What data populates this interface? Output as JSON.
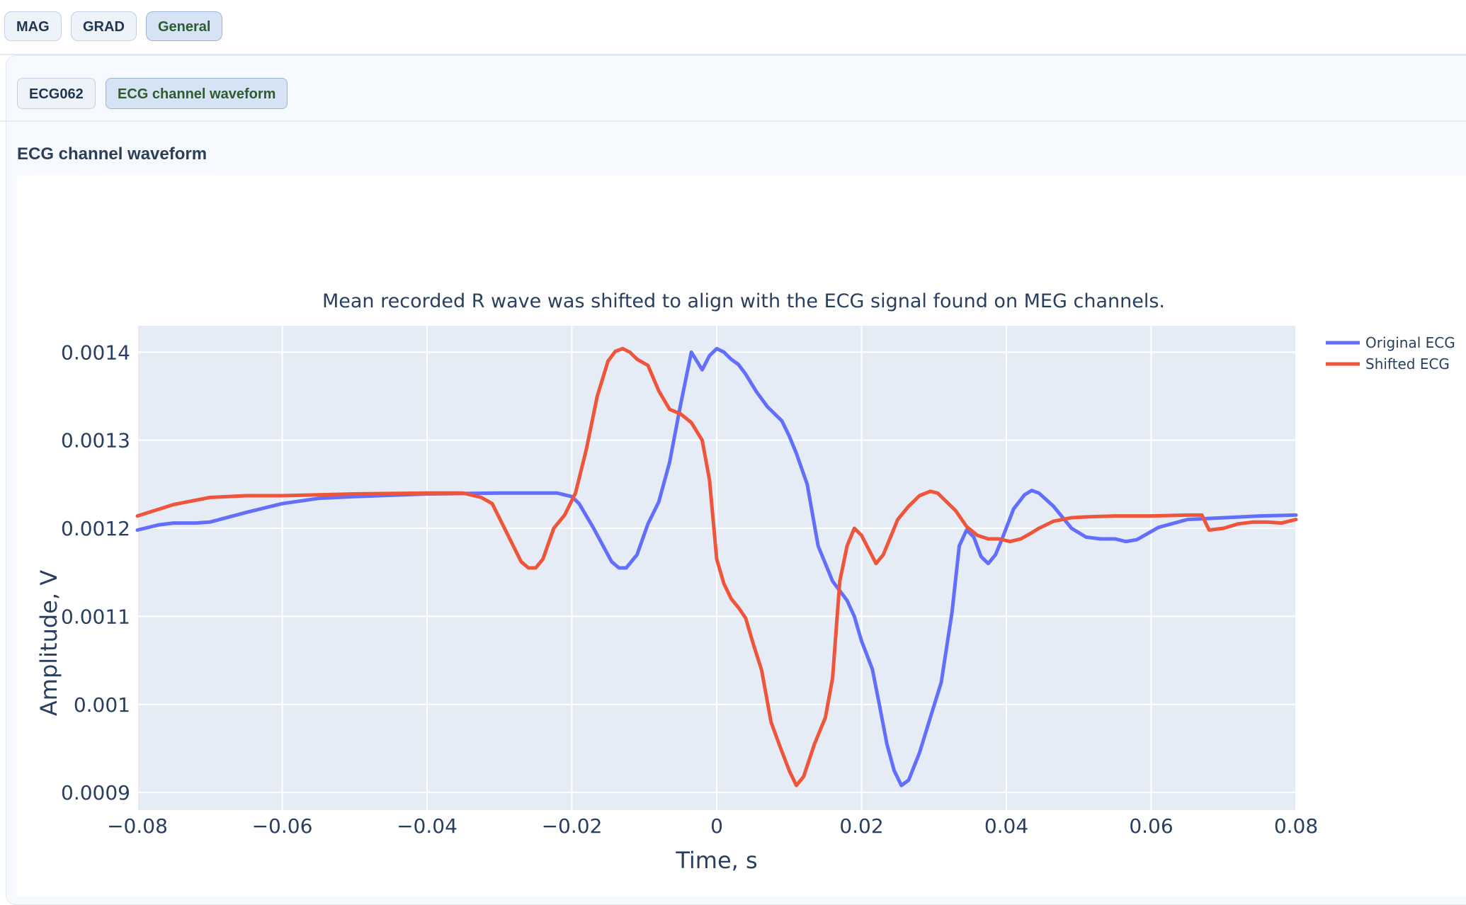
{
  "top_tabs": [
    {
      "label": "MAG"
    },
    {
      "label": "GRAD"
    },
    {
      "label": "General",
      "active": true
    }
  ],
  "sub_tabs": [
    {
      "label": "ECG062"
    },
    {
      "label": "ECG channel waveform",
      "active": true
    }
  ],
  "section_title": "ECG channel waveform",
  "colors": {
    "original": "#636efa",
    "shifted": "#ef553b",
    "plot_bg": "#e5ecf6",
    "grid": "#ffffff"
  },
  "chart_data": {
    "type": "line",
    "title": "Mean recorded R wave was shifted to align with the ECG signal found on MEG channels.",
    "xlabel": "Time, s",
    "ylabel": "Amplitude, V",
    "xlim": [
      -0.08,
      0.08
    ],
    "ylim": [
      0.00088,
      0.00143
    ],
    "x_ticks": [
      -0.08,
      -0.06,
      -0.04,
      -0.02,
      0,
      0.02,
      0.04,
      0.06,
      0.08
    ],
    "x_tick_labels": [
      "−0.08",
      "−0.06",
      "−0.04",
      "−0.02",
      "0",
      "0.02",
      "0.04",
      "0.06",
      "0.08"
    ],
    "y_ticks": [
      0.0009,
      0.001,
      0.0011,
      0.0012,
      0.0013,
      0.0014
    ],
    "y_tick_labels": [
      "0.0009",
      "0.001",
      "0.0011",
      "0.0012",
      "0.0013",
      "0.0014"
    ],
    "grid": true,
    "legend_position": "top-right",
    "series": [
      {
        "name": "Original ECG",
        "color": "#636efa",
        "x": [
          -0.08,
          -0.077,
          -0.075,
          -0.072,
          -0.07,
          -0.065,
          -0.06,
          -0.055,
          -0.05,
          -0.04,
          -0.03,
          -0.022,
          -0.02,
          -0.019,
          -0.017,
          -0.0145,
          -0.0135,
          -0.0125,
          -0.011,
          -0.0095,
          -0.008,
          -0.0065,
          -0.005,
          -0.0035,
          -0.002,
          -0.001,
          0,
          0.001,
          0.002,
          0.003,
          0.004,
          0.0055,
          0.007,
          0.008,
          0.009,
          0.01,
          0.011,
          0.0125,
          0.014,
          0.016,
          0.018,
          0.019,
          0.02,
          0.0215,
          0.0225,
          0.0235,
          0.0245,
          0.0255,
          0.0265,
          0.028,
          0.0295,
          0.031,
          0.0325,
          0.0335,
          0.0345,
          0.0355,
          0.0365,
          0.0375,
          0.0385,
          0.0395,
          0.041,
          0.0425,
          0.0435,
          0.0445,
          0.0465,
          0.049,
          0.051,
          0.053,
          0.055,
          0.0565,
          0.058,
          0.061,
          0.065,
          0.07,
          0.075,
          0.08
        ],
        "y": [
          0.001198,
          0.001204,
          0.001206,
          0.001206,
          0.001207,
          0.001218,
          0.001228,
          0.001234,
          0.001236,
          0.001239,
          0.00124,
          0.00124,
          0.001236,
          0.001228,
          0.0012,
          0.001162,
          0.001155,
          0.001155,
          0.00117,
          0.001205,
          0.00123,
          0.001275,
          0.00134,
          0.0014,
          0.00138,
          0.001396,
          0.001404,
          0.0014,
          0.001392,
          0.001386,
          0.001375,
          0.001355,
          0.001338,
          0.00133,
          0.001322,
          0.001305,
          0.001285,
          0.00125,
          0.00118,
          0.00114,
          0.001118,
          0.0011,
          0.001072,
          0.00104,
          0.000998,
          0.000955,
          0.000925,
          0.000908,
          0.000914,
          0.000945,
          0.000985,
          0.001025,
          0.001105,
          0.00118,
          0.001198,
          0.00119,
          0.001168,
          0.00116,
          0.00117,
          0.00119,
          0.001222,
          0.001238,
          0.001243,
          0.00124,
          0.001225,
          0.0012,
          0.00119,
          0.001188,
          0.001188,
          0.001185,
          0.001187,
          0.001201,
          0.00121,
          0.001212,
          0.001214,
          0.001215
        ]
      },
      {
        "name": "Shifted ECG",
        "color": "#ef553b",
        "x": [
          -0.08,
          -0.075,
          -0.07,
          -0.065,
          -0.06,
          -0.05,
          -0.04,
          -0.035,
          -0.0325,
          -0.031,
          -0.029,
          -0.027,
          -0.026,
          -0.025,
          -0.024,
          -0.0225,
          -0.021,
          -0.0195,
          -0.018,
          -0.0165,
          -0.015,
          -0.014,
          -0.013,
          -0.012,
          -0.011,
          -0.0095,
          -0.008,
          -0.0065,
          -0.005,
          -0.0035,
          -0.002,
          -0.001,
          0,
          0.001,
          0.002,
          0.003,
          0.004,
          0.005,
          0.0062,
          0.0075,
          0.0087,
          0.01,
          0.011,
          0.012,
          0.0135,
          0.015,
          0.016,
          0.017,
          0.018,
          0.019,
          0.02,
          0.0215,
          0.022,
          0.023,
          0.024,
          0.025,
          0.0265,
          0.028,
          0.0295,
          0.0305,
          0.0315,
          0.033,
          0.0345,
          0.036,
          0.0375,
          0.039,
          0.0405,
          0.042,
          0.0435,
          0.0445,
          0.0465,
          0.049,
          0.051,
          0.055,
          0.06,
          0.065,
          0.067,
          0.068,
          0.07,
          0.072,
          0.074,
          0.076,
          0.078,
          0.08
        ],
        "y": [
          0.001214,
          0.001227,
          0.001235,
          0.001237,
          0.001237,
          0.001239,
          0.00124,
          0.00124,
          0.001235,
          0.001228,
          0.001195,
          0.001162,
          0.001155,
          0.001155,
          0.001165,
          0.0012,
          0.001215,
          0.00124,
          0.00129,
          0.00135,
          0.00139,
          0.001401,
          0.001404,
          0.0014,
          0.001392,
          0.001385,
          0.001356,
          0.001335,
          0.00133,
          0.00132,
          0.0013,
          0.001255,
          0.001165,
          0.001137,
          0.00112,
          0.00111,
          0.001098,
          0.00107,
          0.001039,
          0.00098,
          0.000953,
          0.000925,
          0.000908,
          0.000918,
          0.000955,
          0.000985,
          0.00103,
          0.00114,
          0.00118,
          0.0012,
          0.001192,
          0.001168,
          0.00116,
          0.00117,
          0.00119,
          0.00121,
          0.001225,
          0.001237,
          0.001242,
          0.00124,
          0.001232,
          0.00122,
          0.001202,
          0.001192,
          0.001188,
          0.001188,
          0.001185,
          0.001188,
          0.001195,
          0.0012,
          0.001208,
          0.001212,
          0.001213,
          0.001214,
          0.001214,
          0.001215,
          0.001215,
          0.001198,
          0.0012,
          0.001205,
          0.001207,
          0.001207,
          0.001206,
          0.00121
        ]
      }
    ]
  }
}
